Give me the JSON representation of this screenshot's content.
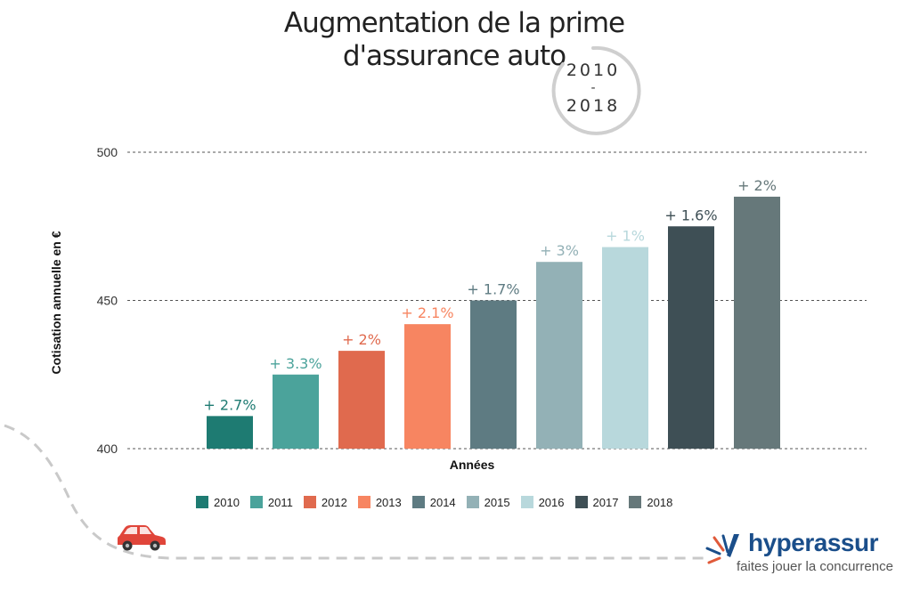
{
  "title": {
    "line1": "Augmentation de la prime",
    "line2": "d'assurance auto"
  },
  "badge": {
    "start": "2010",
    "separator": "-",
    "end": "2018"
  },
  "chart_data": {
    "type": "bar",
    "categories": [
      "2010",
      "2011",
      "2012",
      "2013",
      "2014",
      "2015",
      "2016",
      "2017",
      "2018"
    ],
    "values": [
      411,
      425,
      433,
      442,
      450,
      463,
      468,
      475,
      485
    ],
    "data_labels": [
      "+ 2.7%",
      "+ 3.3%",
      "+ 2%",
      "+ 2.1%",
      "+ 1.7%",
      "+ 3%",
      "+ 1%",
      "+ 1.6%",
      "+ 2%"
    ],
    "colors": [
      "#1e7b72",
      "#4ba39b",
      "#e06a4e",
      "#f78561",
      "#5e7b82",
      "#93b1b6",
      "#b8d8dc",
      "#3e4f55",
      "#66787a"
    ],
    "ylabel": "Cotisation annuelle en €",
    "xlabel": "Années",
    "ylim": [
      400,
      500
    ],
    "yticks": [
      400,
      450,
      500
    ],
    "grid": true,
    "legend_position": "bottom"
  },
  "logo": {
    "name": "hyperassur",
    "tagline": "faites jouer la concurrence",
    "brand_color": "#1a4e8a",
    "accent_color": "#e05a3a",
    "mark_icon": "hyperassur-logo-mark"
  },
  "decoration": {
    "car_icon": "red-car-icon",
    "car_color": "#e0453a"
  }
}
